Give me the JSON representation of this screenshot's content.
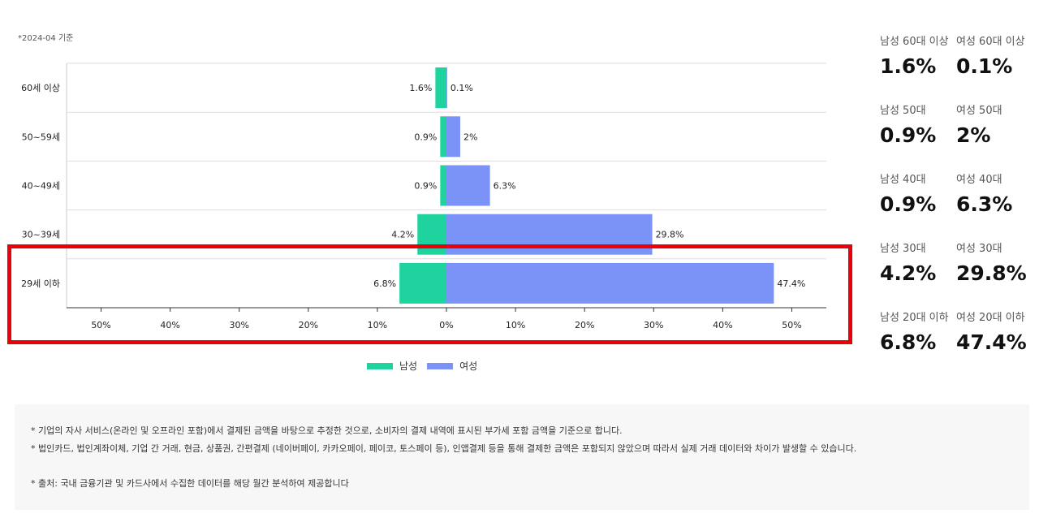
{
  "basis_note": "*2024-04 기준",
  "legend": {
    "male": "남성",
    "female": "여성"
  },
  "colors": {
    "male": "#1fd39f",
    "female": "#7b93f7",
    "highlight": "#e8000b"
  },
  "chart_data": {
    "type": "bar",
    "orientation": "horizontal-diverging",
    "categories": [
      "60세 이상",
      "50~59세",
      "40~49세",
      "30~39세",
      "29세 이하"
    ],
    "series": [
      {
        "name": "남성",
        "values": [
          1.6,
          0.9,
          0.9,
          4.2,
          6.8
        ],
        "labels": [
          "1.6%",
          "0.9%",
          "0.9%",
          "4.2%",
          "6.8%"
        ]
      },
      {
        "name": "여성",
        "values": [
          0.1,
          2,
          6.3,
          29.8,
          47.4
        ],
        "labels": [
          "0.1%",
          "2%",
          "6.3%",
          "29.8%",
          "47.4%"
        ]
      }
    ],
    "xticks": [
      -50,
      -40,
      -30,
      -20,
      -10,
      0,
      10,
      20,
      30,
      40,
      50
    ],
    "xtick_labels": [
      "50%",
      "40%",
      "30%",
      "20%",
      "10%",
      "0%",
      "10%",
      "20%",
      "30%",
      "40%",
      "50%"
    ],
    "xlim": [
      -55,
      55
    ],
    "grid": true,
    "legend_position": "bottom-center",
    "highlighted_category": "29세 이하"
  },
  "summary": [
    {
      "male_label": "남성 60대 이상",
      "male_value": "1.6%",
      "female_label": "여성 60대 이상",
      "female_value": "0.1%"
    },
    {
      "male_label": "남성 50대",
      "male_value": "0.9%",
      "female_label": "여성 50대",
      "female_value": "2%"
    },
    {
      "male_label": "남성 40대",
      "male_value": "0.9%",
      "female_label": "여성 40대",
      "female_value": "6.3%"
    },
    {
      "male_label": "남성 30대",
      "male_value": "4.2%",
      "female_label": "여성 30대",
      "female_value": "29.8%"
    },
    {
      "male_label": "남성 20대 이하",
      "male_value": "6.8%",
      "female_label": "여성 20대 이하",
      "female_value": "47.4%"
    }
  ],
  "notes": {
    "line1": "* 기업의 자사 서비스(온라인 및 오프라인 포함)에서 결제된 금액을 바탕으로 추정한 것으로, 소비자의 결제 내역에 표시된 부가세 포함 금액을 기준으로 합니다.",
    "line2": "* 법인카드, 법인계좌이체, 기업 간 거래, 현금, 상품권, 간편결제 (네이버페이, 카카오페이, 페이코, 토스페이 등), 인앱결제 등을 통해 결제한 금액은 포함되지 않았으며 따라서 실제 거래 데이터와 차이가 발생할 수 있습니다.",
    "source": "* 출처:   국내 금융기관 및 카드사에서 수집한 데이터를 해당 월간 분석하여 제공합니다"
  }
}
